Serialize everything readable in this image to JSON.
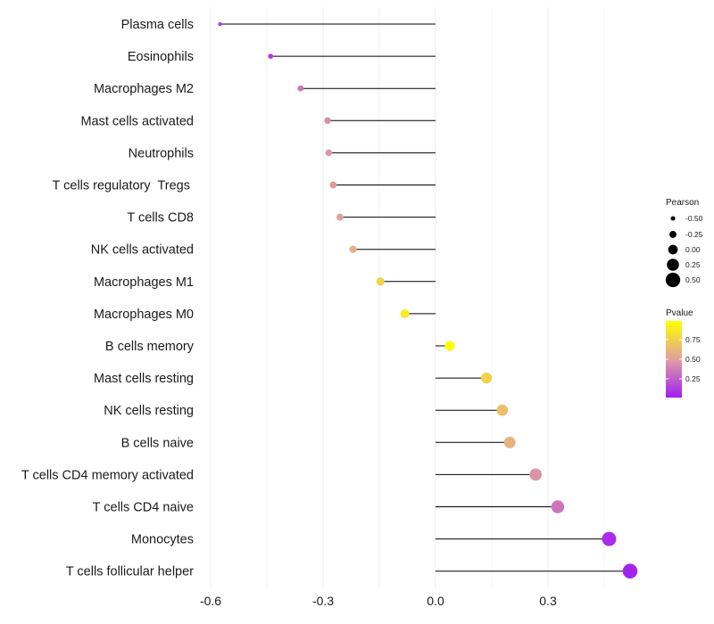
{
  "chart_data": {
    "type": "lollipop",
    "xlim": [
      -0.6,
      0.53
    ],
    "x_ticks": [
      -0.6,
      -0.3,
      0.0,
      0.3
    ],
    "x_tick_labels": [
      "-0.6",
      "-0.3",
      "0.0",
      "0.3"
    ],
    "categories": [
      "Plasma cells",
      "Eosinophils",
      "Macrophages M2",
      "Mast cells activated",
      "Neutrophils",
      "T cells regulatory  Tregs ",
      "T cells CD8",
      "NK cells activated",
      "Macrophages M1",
      "Macrophages M0",
      "B cells memory",
      "Mast cells resting",
      "NK cells resting",
      "B cells naive",
      "T cells CD4 memory activated",
      "T cells CD4 naive",
      "Monocytes",
      "T cells follicular helper"
    ],
    "pearson": [
      -0.575,
      -0.44,
      -0.36,
      -0.288,
      -0.285,
      -0.273,
      -0.255,
      -0.22,
      -0.147,
      -0.082,
      0.038,
      0.136,
      0.178,
      0.198,
      0.267,
      0.326,
      0.463,
      0.519
    ],
    "pvalue": [
      0.1,
      0.12,
      0.33,
      0.43,
      0.46,
      0.47,
      0.5,
      0.58,
      0.77,
      0.88,
      0.97,
      0.76,
      0.66,
      0.6,
      0.45,
      0.34,
      0.06,
      0.03
    ],
    "size_legend": {
      "title": "Pearson",
      "values": [
        -0.5,
        -0.25,
        0.0,
        0.25,
        0.5
      ],
      "labels": [
        "-0.50",
        "-0.25",
        "0.00",
        "0.25",
        "0.50"
      ]
    },
    "color_legend": {
      "title": "Pvalue",
      "range": [
        0.01,
        0.99
      ],
      "ticks": [
        0.25,
        0.5,
        0.75
      ],
      "labels": [
        "0.25",
        "0.50",
        "0.75"
      ],
      "low_color": "#a020f0",
      "mid_color": "#e0a0a0",
      "high_color": "#ffff00"
    },
    "segment_color": "#000000",
    "grid_color": "#ebebeb"
  }
}
